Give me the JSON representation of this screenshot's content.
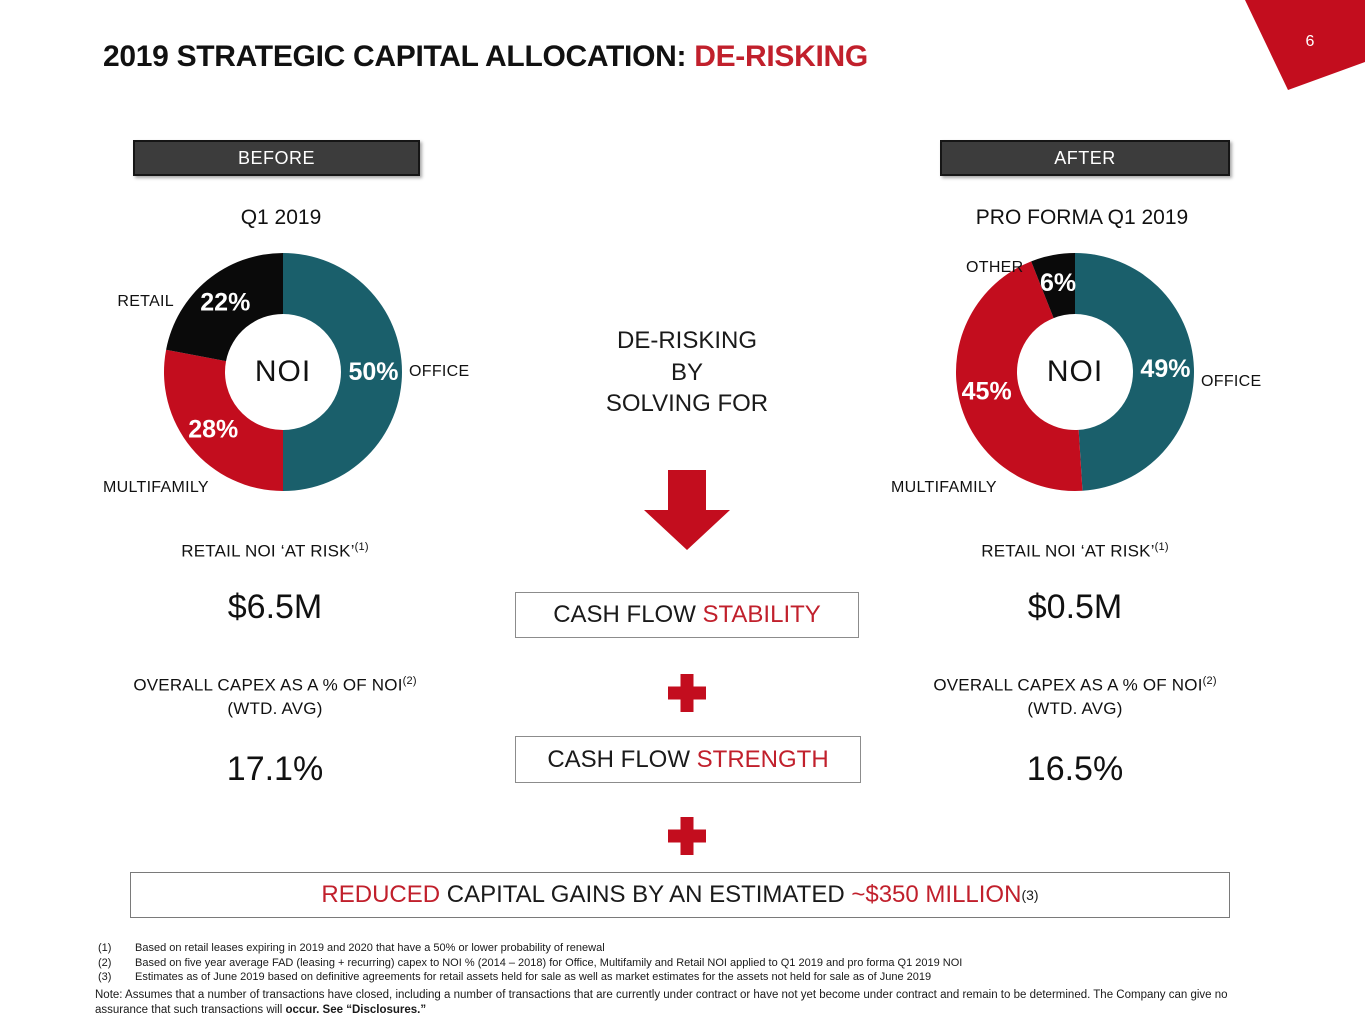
{
  "page": {
    "number": "6"
  },
  "colors": {
    "accent_red": "#C30D1E",
    "text_red": "#C1202C",
    "teal": "#1A5F6B",
    "slice_black": "#0A0A0A",
    "header_bg": "#3C3C3C"
  },
  "title": {
    "black": "2019 STRATEGIC CAPITAL ALLOCATION:",
    "red": " DE-RISKING"
  },
  "chart_data": [
    {
      "type": "pie",
      "variant": "donut",
      "title": "BEFORE",
      "subtitle": "Q1 2019",
      "center_label": "NOI",
      "slices": [
        {
          "label": "OFFICE",
          "value": 50,
          "pct_label": "50%",
          "color": "#1A5F6B"
        },
        {
          "label": "MULTIFAMILY",
          "value": 28,
          "pct_label": "28%",
          "color": "#C30D1E"
        },
        {
          "label": "RETAIL",
          "value": 22,
          "pct_label": "22%",
          "color": "#0A0A0A"
        }
      ]
    },
    {
      "type": "pie",
      "variant": "donut",
      "title": "AFTER",
      "subtitle": "PRO FORMA Q1 2019",
      "center_label": "NOI",
      "slices": [
        {
          "label": "OFFICE",
          "value": 49,
          "pct_label": "49%",
          "color": "#1A5F6B"
        },
        {
          "label": "MULTIFAMILY",
          "value": 45,
          "pct_label": "45%",
          "color": "#C30D1E"
        },
        {
          "label": "OTHER",
          "value": 6,
          "pct_label": "6%",
          "color": "#0A0A0A"
        }
      ]
    }
  ],
  "center": {
    "lines": [
      "DE-RISKING",
      "BY",
      "SOLVING FOR"
    ],
    "box1": {
      "black": "CASH FLOW ",
      "red": "STABILITY"
    },
    "box2": {
      "black": "CASH FLOW ",
      "red": "STRENGTH"
    }
  },
  "stats": {
    "left": {
      "at_risk_label": "RETAIL NOI ‘AT RISK’",
      "at_risk_sup": "(1)",
      "at_risk_value": "$6.5M",
      "capex_label": "OVERALL CAPEX AS A % OF NOI",
      "capex_sup": "(2)",
      "capex_label2": "(WTD. AVG)",
      "capex_value": "17.1%"
    },
    "right": {
      "at_risk_label": "RETAIL NOI ‘AT RISK’",
      "at_risk_sup": "(1)",
      "at_risk_value": "$0.5M",
      "capex_label": "OVERALL CAPEX AS A % OF NOI",
      "capex_sup": "(2)",
      "capex_label2": "(WTD. AVG)",
      "capex_value": "16.5%"
    }
  },
  "banner": {
    "red1": "REDUCED",
    "black": " CAPITAL GAINS BY AN ESTIMATED ",
    "red2": "~$350 MILLION",
    "sup": "(3)"
  },
  "footnotes": [
    {
      "num": "(1)",
      "text": "Based on retail leases expiring in 2019 and 2020 that have a 50% or lower probability of renewal"
    },
    {
      "num": "(2)",
      "text": "Based on five year average FAD (leasing + recurring) capex to NOI % (2014 – 2018) for Office, Multifamily and Retail NOI applied to Q1 2019 and pro forma Q1 2019 NOI"
    },
    {
      "num": "(3)",
      "text": "Estimates as of June 2019 based on definitive agreements for retail assets held for sale as well as market estimates for the assets not held for sale as of June 2019"
    }
  ],
  "note": {
    "prefix": "Note: Assumes that a number of transactions have closed, including a number of transactions that are currently under contract or have not yet become under contract and remain to be determined. The Company can give no assurance that such transactions will ",
    "bold": "occur. See “Disclosures.”"
  }
}
